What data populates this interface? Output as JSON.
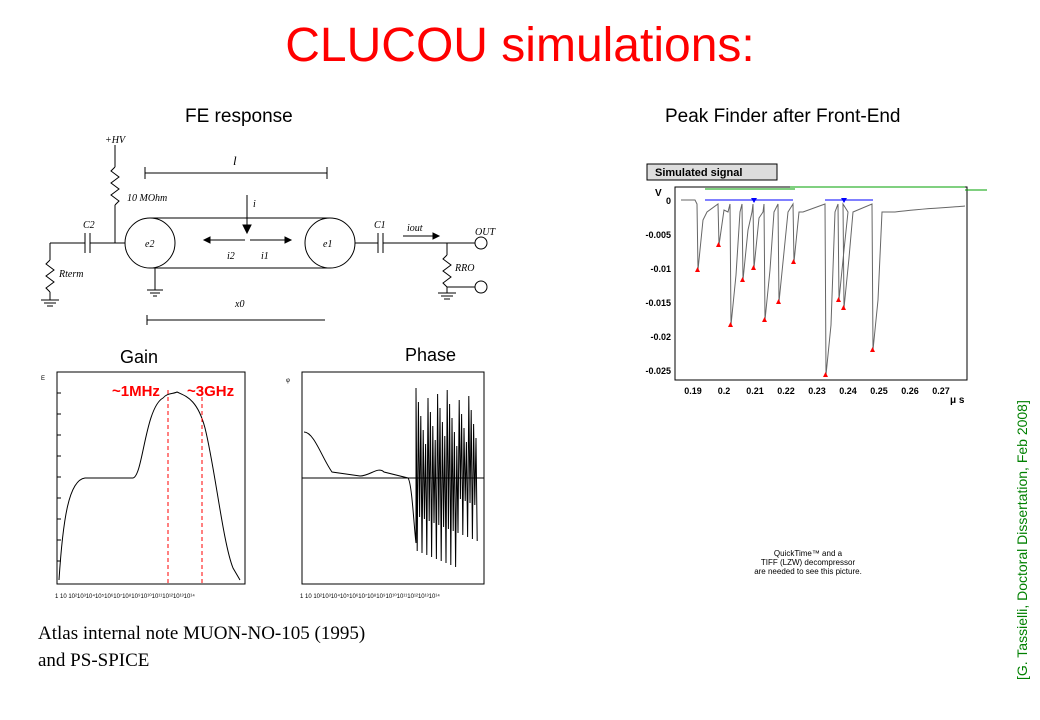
{
  "slide": {
    "title": "CLUCOU simulations:",
    "fe_response_title": "FE response",
    "peak_finder_title": "Peak Finder after Front-End",
    "gain_label": "Gain",
    "phase_label": "Phase",
    "anno_1mhz": "~1MHz",
    "anno_3ghz": "~3GHz",
    "atlas_note_line1": "Atlas internal note MUON-NO-105 (1995)",
    "atlas_note_line2": "and PS-SPICE",
    "citation": "[G. Tassielli, Doctoral Dissertation, Feb 2008]"
  },
  "schematic": {
    "hv": "+HV",
    "resistor": "10 MOhm",
    "length": "l",
    "current": "i",
    "c2": "C2",
    "c1": "C1",
    "e2": "e2",
    "e1": "e1",
    "i2": "i2",
    "i1": "i1",
    "iout": "iout",
    "out": "OUT",
    "rterm": "Rterm",
    "rro": "RRO",
    "x0": "x0"
  },
  "peak_plot": {
    "legend_title": "Simulated signal",
    "y_axis_letter": "V",
    "x_unit": "μ s",
    "y_ticks": [
      "0",
      "-0.005",
      "-0.01",
      "-0.015",
      "-0.02",
      "-0.025"
    ],
    "x_ticks": [
      "0.19",
      "0.2",
      "0.21",
      "0.22",
      "0.23",
      "0.24",
      "0.25",
      "0.26",
      "0.27"
    ]
  },
  "quicktime": {
    "line1": "QuickTime™ and a",
    "line2": "TIFF (LZW) decompressor",
    "line3": "are needed to see this picture."
  },
  "colors": {
    "title": "#ff0000",
    "annotation": "#ff0000",
    "citation": "#008000",
    "peak_marker": "#ff0000",
    "window_marker": "#0000ff",
    "threshold_line": "#00a000"
  }
}
